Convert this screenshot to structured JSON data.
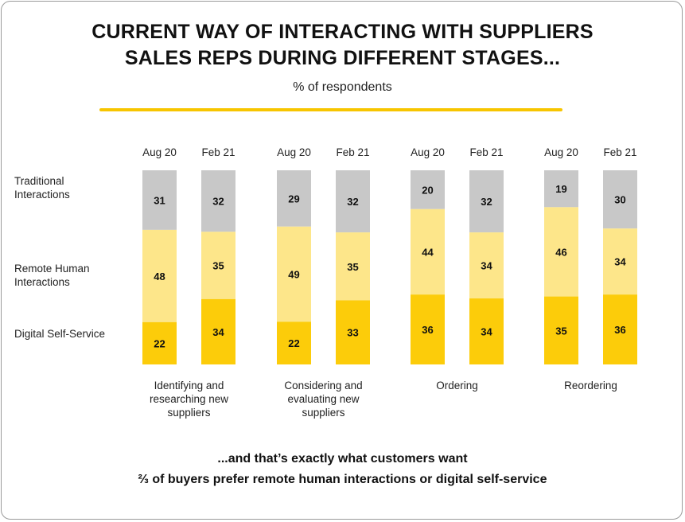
{
  "header": {
    "title_line1": "CURRENT WAY OF INTERACTING WITH SUPPLIERS",
    "title_line2": "SALES REPS DURING DIFFERENT STAGES...",
    "subtitle": "% of respondents",
    "accent_color": "#f7c500"
  },
  "legend": {
    "traditional": "Traditional\nInteractions",
    "remote": "Remote Human\nInteractions",
    "digital": "Digital Self-Service"
  },
  "footer": {
    "line1": "...and that’s exactly what customers want",
    "line2": "⅔ of buyers prefer remote human interactions or digital self-service"
  },
  "chart_data": {
    "type": "bar",
    "stacked": true,
    "groups": [
      {
        "name": "Identifying and\nresearching new\nsuppliers",
        "periods": [
          "Aug 20",
          "Feb 21"
        ]
      },
      {
        "name": "Considering and\nevaluating new\nsuppliers",
        "periods": [
          "Aug 20",
          "Feb 21"
        ]
      },
      {
        "name": "Ordering",
        "periods": [
          "Aug 20",
          "Feb 21"
        ]
      },
      {
        "name": "Reordering",
        "periods": [
          "Aug 20",
          "Feb 21"
        ]
      }
    ],
    "series": [
      {
        "name": "Traditional Interactions",
        "color": "#c8c8c8",
        "values": [
          [
            31,
            32
          ],
          [
            29,
            32
          ],
          [
            20,
            32
          ],
          [
            19,
            30
          ]
        ]
      },
      {
        "name": "Remote Human Interactions",
        "color": "#fde68a",
        "values": [
          [
            48,
            35
          ],
          [
            49,
            35
          ],
          [
            44,
            34
          ],
          [
            46,
            34
          ]
        ]
      },
      {
        "name": "Digital Self-Service",
        "color": "#fccc0a",
        "values": [
          [
            22,
            34
          ],
          [
            22,
            33
          ],
          [
            36,
            34
          ],
          [
            35,
            36
          ]
        ]
      }
    ]
  }
}
